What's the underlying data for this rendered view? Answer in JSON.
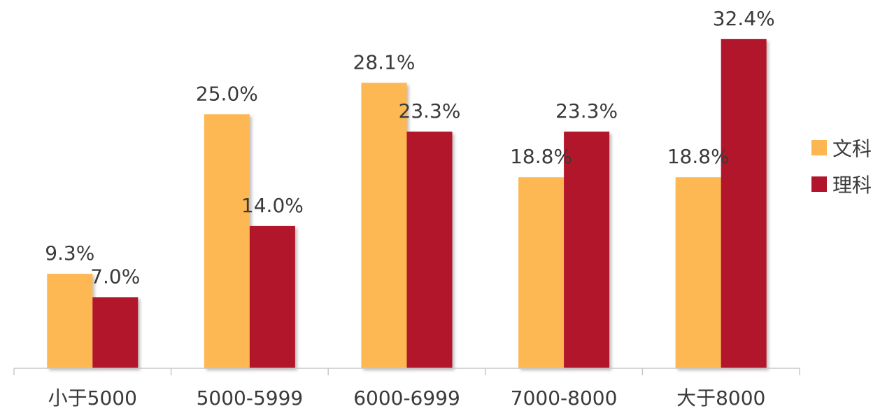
{
  "chart_data": {
    "type": "bar",
    "categories": [
      "小于5000",
      "5000-5999",
      "6000-6999",
      "7000-8000",
      "大于8000"
    ],
    "series": [
      {
        "name": "文科",
        "color": "#FDB752",
        "values": [
          9.3,
          25.0,
          28.1,
          18.8,
          18.8
        ],
        "labels": [
          "9.3%",
          "25.0%",
          "28.1%",
          "18.8%",
          "18.8%"
        ]
      },
      {
        "name": "理科",
        "color": "#B2152B",
        "values": [
          7.0,
          14.0,
          23.3,
          23.3,
          32.4
        ],
        "labels": [
          "7.0%",
          "14.0%",
          "23.3%",
          "23.3%",
          "32.4%"
        ]
      }
    ],
    "ylim": [
      0,
      35
    ],
    "grid": false,
    "legend_position": "right"
  }
}
